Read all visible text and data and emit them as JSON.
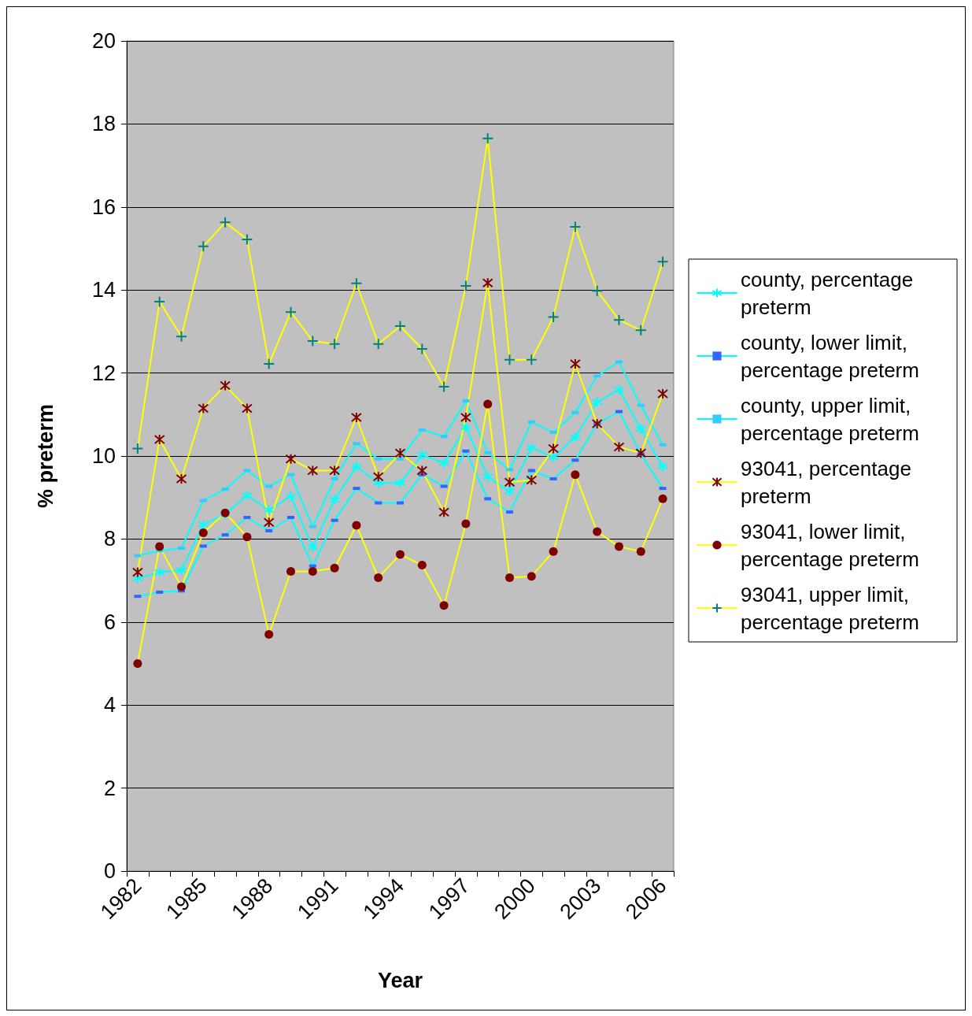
{
  "chart_data": {
    "type": "line",
    "xlabel": "Year",
    "ylabel": "% preterm",
    "categories": [
      "1982",
      null,
      null,
      "1985",
      null,
      null,
      "1988",
      null,
      null,
      "1991",
      null,
      null,
      "1994",
      null,
      null,
      "1997",
      null,
      null,
      "2000",
      null,
      null,
      "2003",
      null,
      null,
      "2006"
    ],
    "ylim": [
      0,
      20
    ],
    "yticks": [
      0,
      2,
      4,
      6,
      8,
      10,
      12,
      14,
      16,
      18,
      20
    ],
    "grid": "y",
    "legend": "right",
    "series": [
      {
        "name": "county, percentage preterm",
        "color": "#00ffff",
        "marker": "cross",
        "values": [
          7.05,
          7.2,
          7.25,
          8.35,
          8.6,
          9.05,
          8.7,
          9.03,
          7.8,
          8.95,
          9.75,
          9.35,
          9.35,
          10.03,
          9.83,
          10.7,
          9.5,
          9.15,
          10.2,
          9.97,
          10.45,
          11.3,
          11.6,
          10.65,
          9.75
        ]
      },
      {
        "name": "county, lower limit, percentage preterm",
        "color": "#00ffff",
        "marker": "square",
        "values": [
          6.62,
          6.72,
          6.75,
          7.83,
          8.1,
          8.52,
          8.2,
          8.52,
          7.35,
          8.45,
          9.22,
          8.87,
          8.87,
          9.55,
          9.27,
          10.12,
          8.97,
          8.65,
          9.65,
          9.45,
          9.9,
          10.78,
          11.07,
          10.05,
          9.22
        ]
      },
      {
        "name": "county, upper limit, percentage preterm",
        "color": "#00ffff",
        "marker": "square",
        "values": [
          7.6,
          7.72,
          7.78,
          8.93,
          9.2,
          9.65,
          9.27,
          9.55,
          8.3,
          9.45,
          10.3,
          9.93,
          9.93,
          10.63,
          10.47,
          11.33,
          10.08,
          9.67,
          10.82,
          10.57,
          11.05,
          11.93,
          12.27,
          11.22,
          10.27
        ]
      },
      {
        "name": "93041, percentage preterm",
        "color": "#ffff00",
        "marker": "cross",
        "values": [
          7.2,
          10.4,
          9.45,
          11.15,
          11.7,
          11.15,
          8.4,
          9.93,
          9.65,
          9.65,
          10.93,
          9.5,
          10.07,
          9.65,
          8.65,
          10.93,
          14.17,
          9.37,
          9.42,
          10.18,
          12.22,
          10.78,
          10.22,
          10.07,
          11.5
        ]
      },
      {
        "name": "93041, lower limit, percentage preterm",
        "color": "#ffff00",
        "marker": "circle",
        "values": [
          5.0,
          7.82,
          6.85,
          8.15,
          8.63,
          8.05,
          5.7,
          7.22,
          7.22,
          7.3,
          8.33,
          7.07,
          7.63,
          7.37,
          6.4,
          8.37,
          11.25,
          7.07,
          7.1,
          7.7,
          9.55,
          8.18,
          7.82,
          7.7,
          8.97
        ]
      },
      {
        "name": "93041, upper limit, percentage preterm",
        "color": "#ffff00",
        "marker": "cross",
        "values": [
          10.18,
          13.72,
          12.88,
          15.05,
          15.63,
          15.22,
          12.22,
          13.47,
          12.77,
          12.7,
          14.16,
          12.7,
          13.13,
          12.58,
          11.67,
          14.1,
          17.65,
          12.32,
          12.32,
          13.35,
          15.52,
          13.98,
          13.28,
          13.03,
          14.68
        ]
      }
    ]
  }
}
